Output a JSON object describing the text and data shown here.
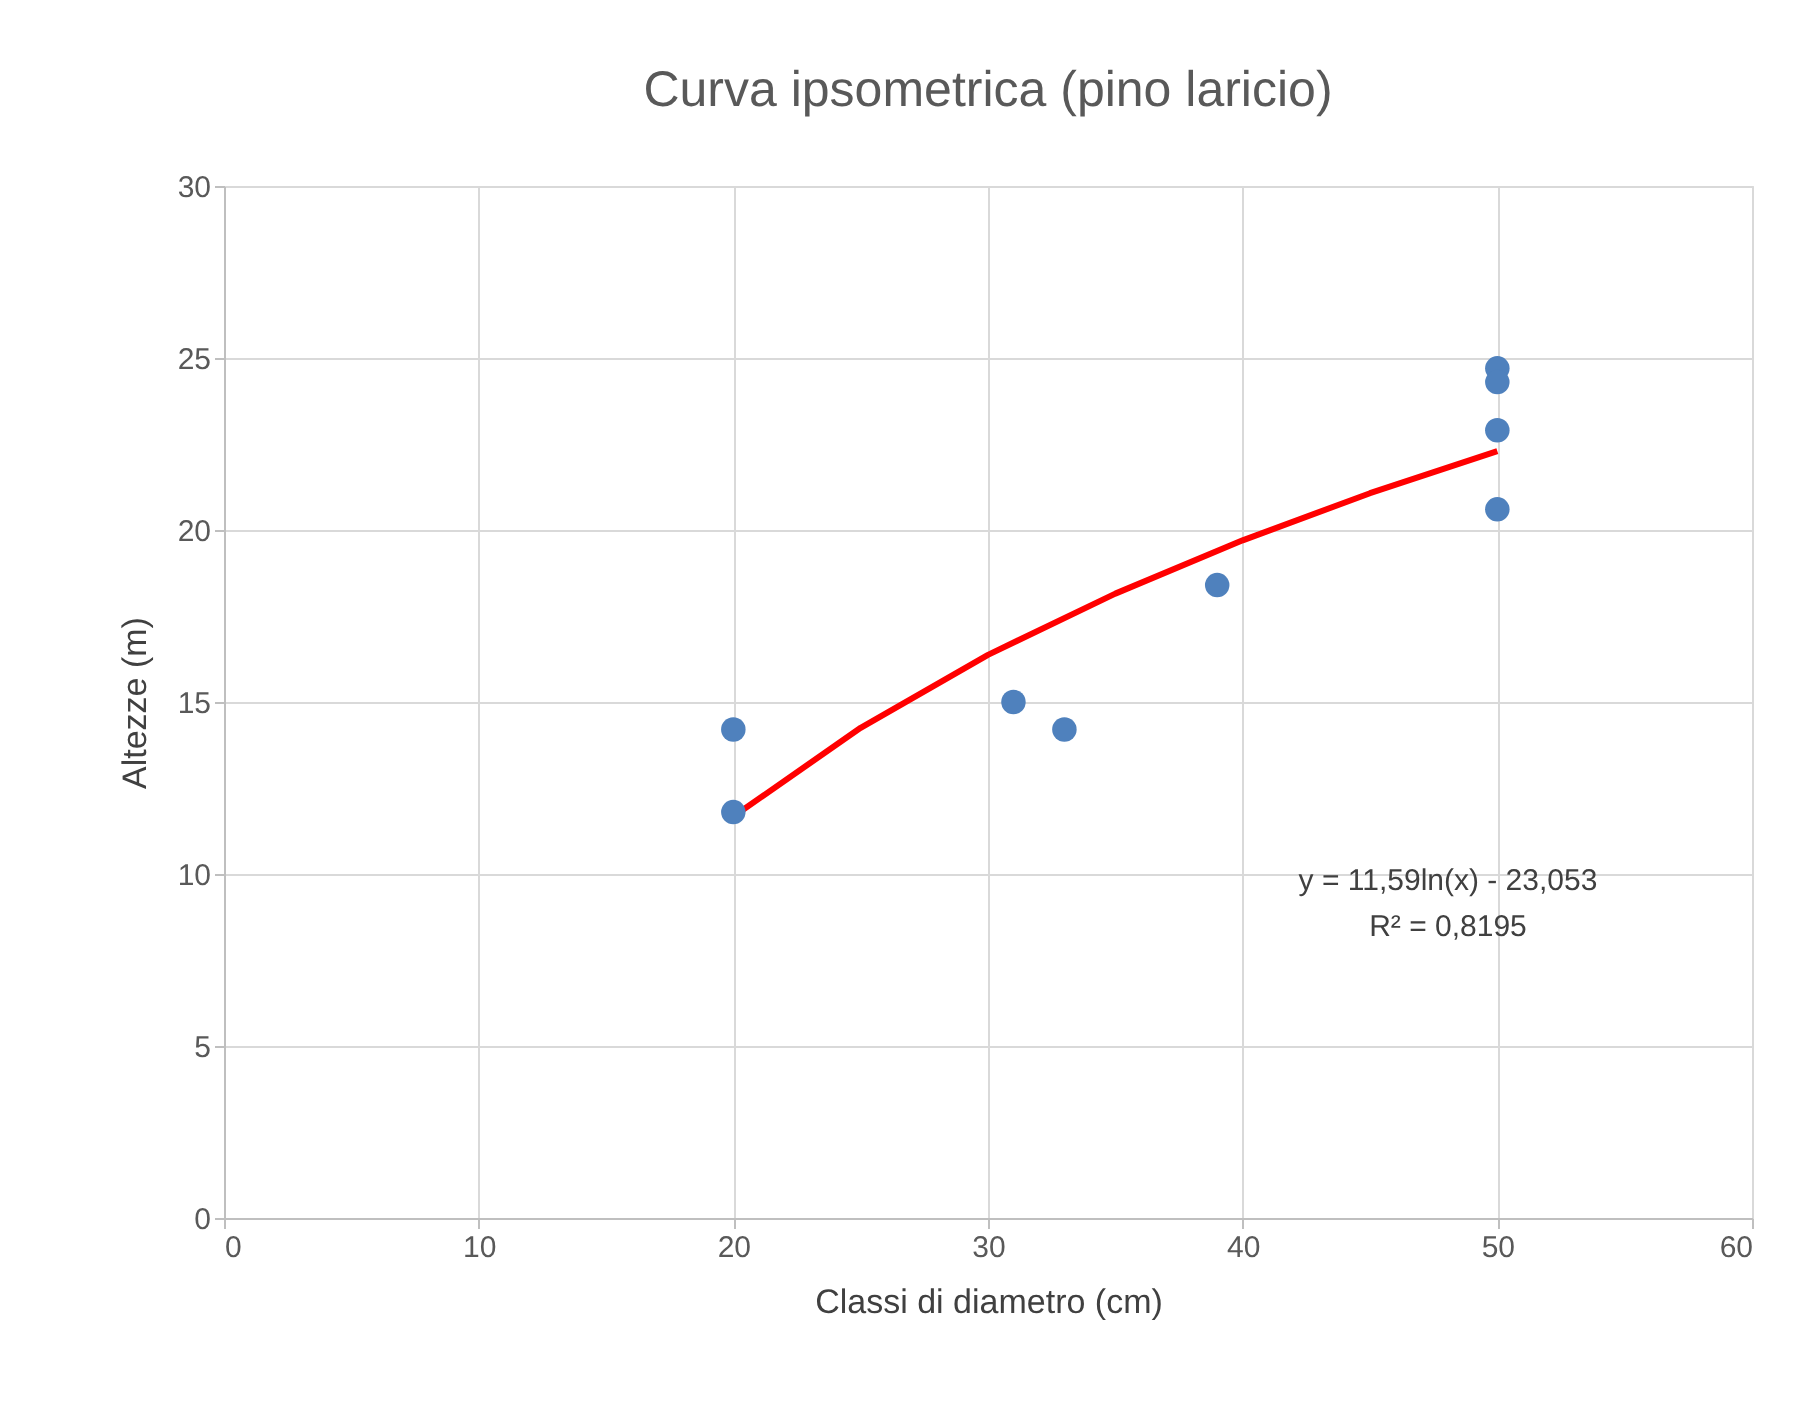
{
  "chart_data": {
    "type": "scatter",
    "title": "Curva ipsometrica (pino laricio)",
    "xlabel": "Classi di diametro (cm)",
    "ylabel": "Altezze (m)",
    "series": [
      {
        "marker": "circle",
        "color": "#4f81bd",
        "x": [
          20,
          20,
          31,
          33,
          39,
          50,
          50,
          50,
          50
        ],
        "values": [
          14.2,
          11.8,
          15.0,
          14.2,
          18.4,
          24.7,
          24.3,
          22.9,
          20.6
        ]
      },
      {
        "type": "line",
        "color": "#ff0000",
        "x": [
          20,
          25,
          30,
          35,
          40,
          45,
          50
        ],
        "values": [
          11.67,
          14.25,
          16.37,
          18.15,
          19.7,
          21.07,
          22.29
        ]
      }
    ],
    "xlim": [
      0,
      60
    ],
    "xticks": [
      0,
      10,
      20,
      30,
      40,
      50,
      60
    ],
    "ylim": [
      0,
      30
    ],
    "yticks": [
      0,
      5,
      10,
      15,
      20,
      25,
      30
    ],
    "grid": true,
    "line_style": "solid",
    "annotations": [
      "y = 11,59ln(x) - 23,053",
      "R² = 0,8195"
    ]
  }
}
